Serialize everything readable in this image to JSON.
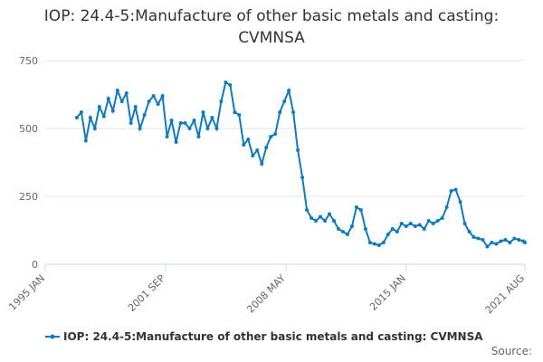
{
  "chart_data": {
    "type": "line",
    "title": "IOP: 24.4-5:Manufacture of other basic metals and casting: CVMNSA",
    "source": "Source:",
    "x": [
      "1996 OCT",
      "1997 JAN",
      "1997 APR",
      "1997 JUL",
      "1997 OCT",
      "1998 JAN",
      "1998 APR",
      "1998 JUL",
      "1998 OCT",
      "1999 JAN",
      "1999 APR",
      "1999 JUL",
      "1999 OCT",
      "2000 JAN",
      "2000 APR",
      "2000 JUL",
      "2000 OCT",
      "2001 JAN",
      "2001 APR",
      "2001 JUL",
      "2001 OCT",
      "2002 JAN",
      "2002 APR",
      "2002 JUL",
      "2002 OCT",
      "2003 JAN",
      "2003 APR",
      "2003 JUL",
      "2003 OCT",
      "2004 JAN",
      "2004 APR",
      "2004 JUL",
      "2004 OCT",
      "2005 JAN",
      "2005 APR",
      "2005 JUL",
      "2005 OCT",
      "2006 JAN",
      "2006 APR",
      "2006 JUL",
      "2006 OCT",
      "2007 JAN",
      "2007 APR",
      "2007 JUL",
      "2007 OCT",
      "2008 JAN",
      "2008 APR",
      "2008 JUL",
      "2008 OCT",
      "2009 JAN",
      "2009 APR",
      "2009 JUL",
      "2009 OCT",
      "2010 JAN",
      "2010 APR",
      "2010 JUL",
      "2010 OCT",
      "2011 JAN",
      "2011 APR",
      "2011 JUL",
      "2011 OCT",
      "2012 JAN",
      "2012 APR",
      "2012 JUL",
      "2012 OCT",
      "2013 JAN",
      "2013 APR",
      "2013 JUL",
      "2013 OCT",
      "2014 JAN",
      "2014 APR",
      "2014 JUL",
      "2014 OCT",
      "2015 JAN",
      "2015 APR",
      "2015 JUL",
      "2015 OCT",
      "2016 JAN",
      "2016 APR",
      "2016 JUL",
      "2016 OCT",
      "2017 JAN",
      "2017 APR",
      "2017 JUL",
      "2017 OCT",
      "2018 JAN",
      "2018 APR",
      "2018 JUL",
      "2018 OCT",
      "2019 JAN",
      "2019 APR",
      "2019 JUL",
      "2019 OCT",
      "2020 JAN",
      "2020 APR",
      "2020 JUL",
      "2020 OCT",
      "2021 JAN",
      "2021 APR",
      "2021 JUL",
      "2021 AUG"
    ],
    "series": [
      {
        "name": "IOP: 24.4-5:Manufacture of other basic metals and casting: CVMNSA",
        "color": "#0f7cbf",
        "values": [
          540,
          560,
          455,
          540,
          500,
          580,
          545,
          610,
          565,
          640,
          600,
          630,
          520,
          580,
          500,
          550,
          600,
          620,
          590,
          620,
          470,
          530,
          450,
          520,
          520,
          500,
          530,
          470,
          560,
          500,
          540,
          500,
          600,
          670,
          660,
          560,
          550,
          440,
          460,
          400,
          420,
          370,
          430,
          470,
          480,
          560,
          600,
          640,
          560,
          420,
          320,
          200,
          170,
          160,
          175,
          160,
          185,
          160,
          130,
          120,
          110,
          140,
          210,
          200,
          130,
          80,
          75,
          70,
          80,
          110,
          130,
          120,
          150,
          140,
          150,
          140,
          145,
          130,
          160,
          150,
          160,
          170,
          210,
          270,
          275,
          230,
          150,
          120,
          100,
          95,
          90,
          65,
          80,
          75,
          85,
          90,
          80,
          95,
          90,
          85,
          80
        ]
      }
    ],
    "xlim": [
      "1995 JAN",
      "2021 AUG"
    ],
    "xticks": [
      "1995 JAN",
      "2001 SEP",
      "2008 MAY",
      "2015 JAN",
      "2021 AUG"
    ],
    "ylim": [
      0,
      750
    ],
    "yticks": [
      0,
      250,
      500,
      750
    ],
    "grid": true
  }
}
